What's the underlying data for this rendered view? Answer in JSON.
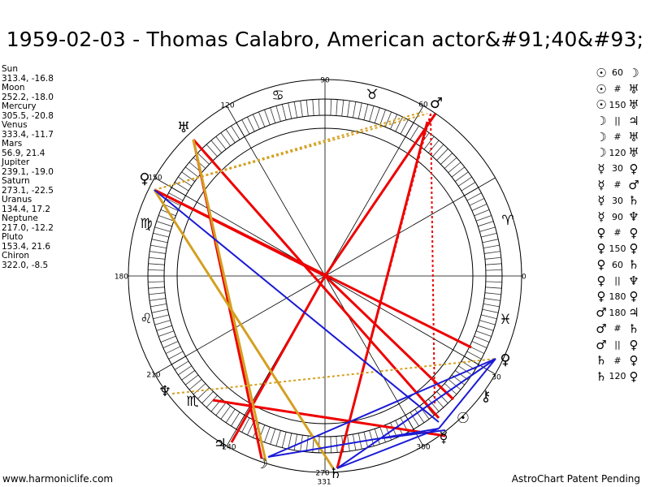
{
  "title": "1959-02-03 - Thomas Calabro, American actor&#91;40&#93;",
  "positions": [
    {
      "name": "Sun",
      "value": "313.4, -16.8"
    },
    {
      "name": "Moon",
      "value": "252.2, -18.0"
    },
    {
      "name": "Mercury",
      "value": "305.5, -20.8"
    },
    {
      "name": "Venus",
      "value": "333.4, -11.7"
    },
    {
      "name": "Mars",
      "value": "56.9, 21.4"
    },
    {
      "name": "Jupiter",
      "value": "239.1, -19.0"
    },
    {
      "name": "Saturn",
      "value": "273.1, -22.5"
    },
    {
      "name": "Uranus",
      "value": "134.4, 17.2"
    },
    {
      "name": "Neptune",
      "value": "217.0, -12.2"
    },
    {
      "name": "Pluto",
      "value": "153.4, 21.6"
    },
    {
      "name": "Chiron",
      "value": "322.0, -8.5"
    }
  ],
  "aspects": [
    {
      "p1": "☉",
      "a": "60",
      "p2": "☽"
    },
    {
      "p1": "☉",
      "a": "#",
      "p2": "♅"
    },
    {
      "p1": "☉",
      "a": "150",
      "p2": "♅"
    },
    {
      "p1": "☽",
      "a": "||",
      "p2": "♃"
    },
    {
      "p1": "☽",
      "a": "#",
      "p2": "♅"
    },
    {
      "p1": "☽",
      "a": "120",
      "p2": "♅"
    },
    {
      "p1": "☿",
      "a": "30",
      "p2": "♀"
    },
    {
      "p1": "☿",
      "a": "#",
      "p2": "♂"
    },
    {
      "p1": "☿",
      "a": "30",
      "p2": "♄"
    },
    {
      "p1": "☿",
      "a": "90",
      "p2": "♆"
    },
    {
      "p1": "♀",
      "a": "#",
      "p2": "♀"
    },
    {
      "p1": "♀",
      "a": "150",
      "p2": "♀"
    },
    {
      "p1": "♀",
      "a": "60",
      "p2": "♄"
    },
    {
      "p1": "♀",
      "a": "||",
      "p2": "♆"
    },
    {
      "p1": "♀",
      "a": "180",
      "p2": "♀"
    },
    {
      "p1": "♂",
      "a": "180",
      "p2": "♃"
    },
    {
      "p1": "♂",
      "a": "#",
      "p2": "♄"
    },
    {
      "p1": "♂",
      "a": "||",
      "p2": "♀"
    },
    {
      "p1": "♄",
      "a": "#",
      "p2": "♀"
    },
    {
      "p1": "♄",
      "a": "120",
      "p2": "♀"
    }
  ],
  "wheel_labels": {
    "deg_0": "0",
    "deg_30": "30",
    "deg_60": "60",
    "deg_90": "90",
    "deg_120": "120",
    "deg_150": "150",
    "deg_180": "180",
    "deg_210": "210",
    "deg_240": "240",
    "deg_270": "270",
    "deg_300": "300",
    "deg_330": "330",
    "asc": "331"
  },
  "zodiac_glyphs": [
    "♈",
    "♉",
    "♊",
    "♋",
    "♌",
    "♍",
    "♎",
    "♏",
    "♐",
    "♑",
    "♒",
    "♓"
  ],
  "planet_glyphs": {
    "sun": "☉",
    "moon": "☽",
    "mercury": "☿",
    "venus": "♀",
    "mars": "♂",
    "jupiter": "♃",
    "saturn": "♄",
    "uranus": "♅",
    "neptune": "♆",
    "pluto": "♀",
    "chiron": "⚷"
  },
  "colors": {
    "red": "#ee0000",
    "blue": "#1a1ad6",
    "orange": "#d4a020",
    "tick": "#333333"
  },
  "footer": {
    "left": "www.harmoniclife.com",
    "right": "AstroChart Patent Pending"
  }
}
